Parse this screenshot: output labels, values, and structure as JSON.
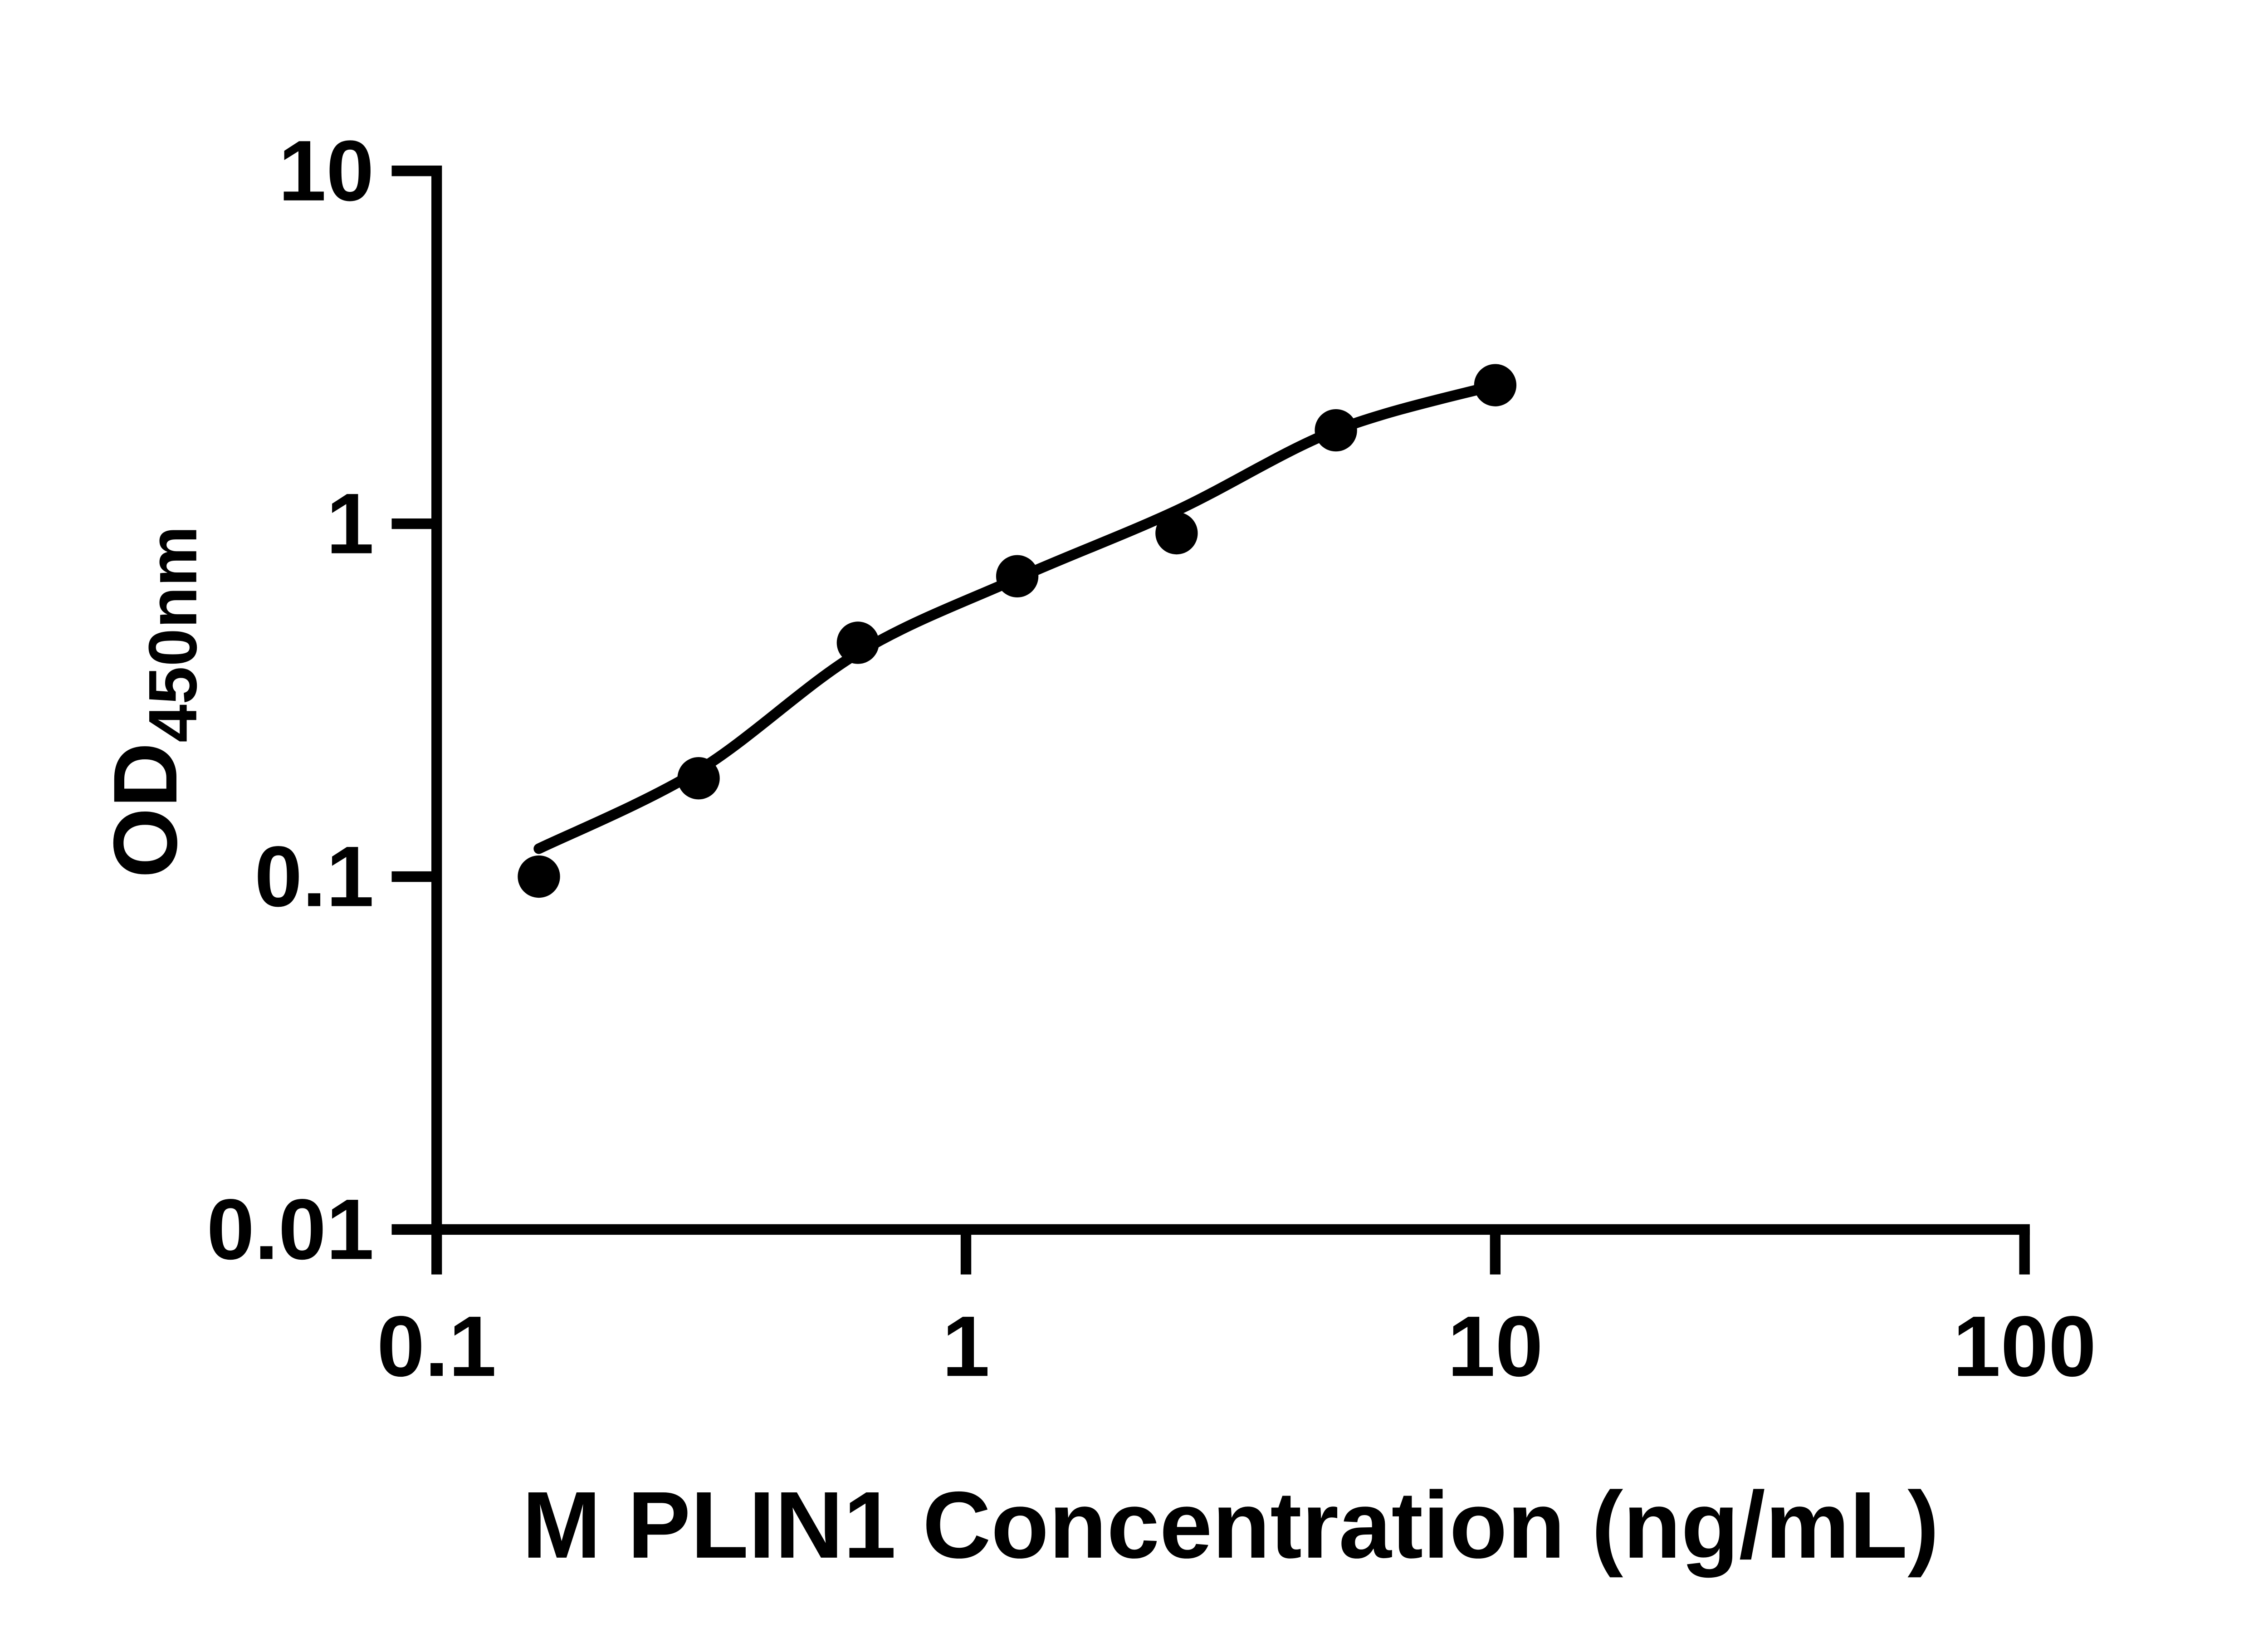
{
  "figure": {
    "background_color": "#ffffff",
    "ink_color": "#000000"
  },
  "chart_data": {
    "type": "scatter",
    "subtype": "elisa-standard-curve-with-fit-line",
    "scale": "log-log",
    "title": "",
    "xlabel": "M PLIN1 Concentration (ng/mL)",
    "ylabel_main": "OD",
    "ylabel_subscript": "450nm",
    "x": [
      0.156,
      0.3125,
      0.625,
      1.25,
      2.5,
      5,
      10
    ],
    "y_od": [
      0.1,
      0.19,
      0.46,
      0.71,
      0.94,
      1.84,
      2.47
    ],
    "fit_curve_od": [
      0.12,
      0.2,
      0.43,
      0.7,
      1.09,
      1.84,
      2.47
    ],
    "xlim": [
      0.1,
      100
    ],
    "ylim": [
      0.01,
      10
    ],
    "x_ticks": [
      0.1,
      1,
      10,
      100
    ],
    "x_tick_labels": [
      "0.1",
      "1",
      "10",
      "100"
    ],
    "y_ticks": [
      0.01,
      0.1,
      1,
      10
    ],
    "y_tick_labels": [
      "0.01",
      "0.1",
      "1",
      "10"
    ],
    "grid": false,
    "legend": "none",
    "marker": {
      "shape": "circle",
      "color": "#000000",
      "radius": 48
    },
    "line": {
      "color": "#000000",
      "width": 24
    }
  }
}
